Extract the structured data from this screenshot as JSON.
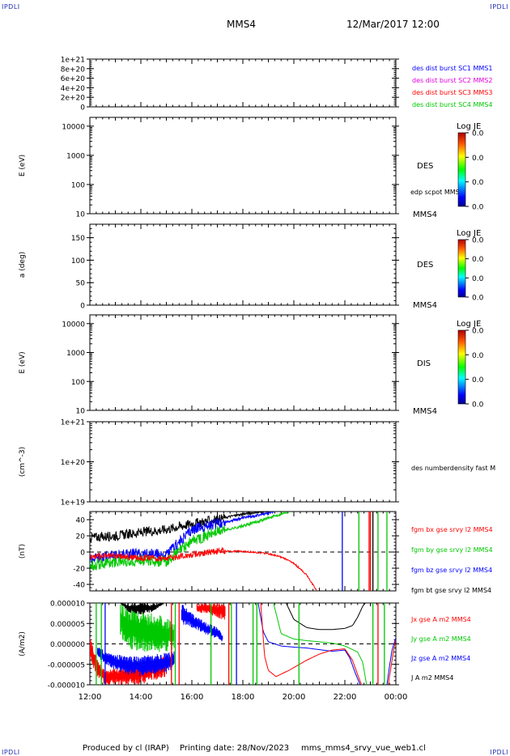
{
  "header": {
    "corner_label": "IPDLI",
    "title": "MMS4",
    "datetime": "12/Mar/2017 12:00"
  },
  "footer": {
    "produced_by": "Produced by cl (IRAP)",
    "printing_date": "Printing date: 28/Nov/2023",
    "filename": "mms_mms4_srvy_vue_web1.cl"
  },
  "colors": {
    "black": "#000000",
    "blue": "#0000ff",
    "red": "#ff0000",
    "green": "#00c800",
    "magenta": "#e000e0"
  },
  "chart_data": [
    {
      "type": "line",
      "id": "dist",
      "ylim": [
        0,
        1e+21
      ],
      "yticks": [
        0,
        2e+20,
        4e+20,
        6e+20,
        8e+20,
        1e+21
      ],
      "ytick_labels": [
        "0",
        "2e+20",
        "4e+20",
        "6e+20",
        "8e+20",
        "1e+21"
      ],
      "ylabel": "",
      "legend": [
        {
          "name": "des dist burst SC1 MMS1",
          "color": "#0000ff"
        },
        {
          "name": "des dist burst SC2 MMS2",
          "color": "#e000e0"
        },
        {
          "name": "des dist burst SC3 MMS3",
          "color": "#ff0000"
        },
        {
          "name": "des dist burst SC4 MMS4",
          "color": "#00c800"
        }
      ],
      "zero_line": true
    },
    {
      "type": "heatmap",
      "id": "des_energy",
      "scale": "log",
      "ylim": [
        10,
        20000
      ],
      "yticks": [
        10,
        100,
        1000,
        10000
      ],
      "ytick_labels": [
        "10",
        "100",
        "1000",
        "10000"
      ],
      "ylabel": "E (eV)",
      "label": "DES",
      "sub_label": "edp scpot MMS4",
      "bottom_label": "MMS4",
      "colorbar": {
        "title": "Log JE",
        "ticks": [
          "0.0",
          "0.0",
          "0.0",
          "0.0"
        ]
      }
    },
    {
      "type": "heatmap",
      "id": "des_pitch",
      "ylim": [
        0,
        180
      ],
      "yticks": [
        0,
        50,
        100,
        150
      ],
      "ytick_labels": [
        "0",
        "50",
        "100",
        "150"
      ],
      "ylabel": "a (deg)",
      "label": "DES",
      "bottom_label": "MMS4",
      "colorbar": {
        "title": "Log JE",
        "ticks": [
          "0.0",
          "0.0",
          "0.0",
          "0.0"
        ]
      }
    },
    {
      "type": "heatmap",
      "id": "dis_energy",
      "scale": "log",
      "ylim": [
        10,
        20000
      ],
      "yticks": [
        10,
        100,
        1000,
        10000
      ],
      "ytick_labels": [
        "10",
        "100",
        "1000",
        "10000"
      ],
      "ylabel": "E (eV)",
      "label": "DIS",
      "bottom_label": "MMS4",
      "colorbar": {
        "title": "Log JE",
        "ticks": [
          "0.0",
          "0.0",
          "0.0",
          "0.0"
        ]
      }
    },
    {
      "type": "line",
      "id": "density",
      "scale": "log",
      "ylim": [
        1e+19,
        1e+21
      ],
      "yticks": [
        1e+19,
        1e+20,
        1e+21
      ],
      "ytick_labels": [
        "1e+19",
        "1e+20",
        "1e+21"
      ],
      "ylabel": "(cm^-3)",
      "legend": [
        {
          "name": "des numberdensity fast M",
          "color": "#000000"
        }
      ]
    },
    {
      "type": "line",
      "id": "fgm",
      "ylim": [
        -48,
        50
      ],
      "yticks": [
        -40,
        -20,
        0,
        20,
        40
      ],
      "ytick_labels": [
        "-40",
        "-20",
        "0",
        "20",
        "40"
      ],
      "ylabel": "(nT)",
      "zero_line": true,
      "legend": [
        {
          "name": "fgm bx gse srvy l2 MMS4",
          "color": "#ff0000"
        },
        {
          "name": "fgm by gse srvy l2 MMS4",
          "color": "#00c800"
        },
        {
          "name": "fgm bz gse srvy l2 MMS4",
          "color": "#0000ff"
        },
        {
          "name": "fgm bt gse srvy l2 MMS4",
          "color": "#000000"
        }
      ],
      "series": [
        {
          "name": "fgm bt gse srvy l2 MMS4",
          "color": "#000000",
          "noise": 6,
          "x": [
            12.0,
            13.0,
            14.0,
            15.0,
            16.0,
            17.0,
            17.5,
            18.0,
            18.5,
            19.0
          ],
          "y": [
            18,
            20,
            24,
            28,
            35,
            40,
            44,
            47,
            49,
            50
          ]
        },
        {
          "name": "fgm bz gse srvy l2 MMS4",
          "color": "#0000ff",
          "noise": 7,
          "x": [
            12.0,
            13.0,
            14.0,
            15.0,
            16.0,
            17.0,
            18.0,
            18.5,
            19.0,
            19.2
          ],
          "y": [
            -8,
            -4,
            -2,
            -4,
            28,
            35,
            42,
            45,
            48,
            50
          ]
        },
        {
          "name": "fgm by gse srvy l2 MMS4",
          "color": "#00c800",
          "noise": 7,
          "x": [
            12.0,
            13.0,
            14.0,
            15.0,
            16.0,
            17.0,
            18.0,
            19.0,
            19.8
          ],
          "y": [
            -16,
            -12,
            -10,
            -12,
            14,
            25,
            32,
            42,
            50
          ]
        },
        {
          "name": "fgm bx gse srvy l2 MMS4",
          "color": "#ff0000",
          "noise": 4,
          "x": [
            12.0,
            13.0,
            14.0,
            15.0,
            16.0,
            17.0,
            18.0,
            19.0,
            19.5,
            20.0,
            20.5,
            20.9
          ],
          "y": [
            -6,
            -5,
            -7,
            -8,
            -3,
            1,
            1,
            -2,
            -6,
            -14,
            -28,
            -48
          ]
        }
      ],
      "vlines": [
        {
          "x": 21.9,
          "color": "#0000ff"
        },
        {
          "x": 22.55,
          "color": "#00c800"
        },
        {
          "x": 22.95,
          "color": "#ff0000"
        },
        {
          "x": 23.0,
          "color": "#ff0000"
        },
        {
          "x": 23.1,
          "color": "#000000"
        },
        {
          "x": 23.3,
          "color": "#00c800"
        },
        {
          "x": 23.65,
          "color": "#00c800"
        }
      ]
    },
    {
      "type": "line",
      "id": "current",
      "ylim": [
        -1e-05,
        1e-05
      ],
      "yticks": [
        -1e-05,
        -5e-06,
        0,
        5e-06,
        1e-05
      ],
      "ytick_labels": [
        "-0.000010",
        "-0.000005",
        "0.000000",
        "0.000005",
        "0.000010"
      ],
      "ylabel": "(A/m2)",
      "zero_line": true,
      "legend": [
        {
          "name": "Jx gse A m2 MMS4",
          "color": "#ff0000"
        },
        {
          "name": "Jy gse A m2 MMS4",
          "color": "#00c800"
        },
        {
          "name": "Jz gse A m2 MMS4",
          "color": "#0000ff"
        },
        {
          "name": "J A m2 MMS4",
          "color": "#000000"
        }
      ],
      "series": [
        {
          "name": "J A m2 MMS4",
          "color": "#000000",
          "noise": 0,
          "x": [
            19.7,
            20.0,
            20.5,
            21.0,
            21.5,
            22.0,
            22.3,
            22.5,
            22.7,
            22.8
          ],
          "y": [
            1e-05,
            6e-06,
            4e-06,
            3.5e-06,
            3.5e-06,
            3.8e-06,
            4.5e-06,
            6.5e-06,
            9.2e-06,
            1e-05
          ]
        },
        {
          "name": "Jy gse A m2 MMS4",
          "color": "#00c800",
          "noise": 0,
          "x": [
            19.2,
            19.5,
            20.0,
            20.5,
            21.0,
            21.5,
            22.0,
            22.5,
            22.7,
            22.85
          ],
          "y": [
            1e-05,
            2.5e-06,
            1.2e-06,
            8e-07,
            5e-07,
            2e-07,
            -5e-07,
            -2e-06,
            -4.5e-06,
            -1e-05
          ]
        },
        {
          "name": "Jz gse A m2 MMS4",
          "color": "#0000ff",
          "noise": 0,
          "x": [
            18.6,
            18.8,
            19.0,
            19.5,
            20.0,
            20.5,
            21.0,
            21.5,
            22.0,
            22.2,
            22.4,
            22.6
          ],
          "y": [
            1e-05,
            3e-06,
            5e-07,
            -5e-07,
            -8e-07,
            -1e-06,
            -1.4e-06,
            -1.8e-06,
            -1.5e-06,
            -3.5e-06,
            -7e-06,
            -1e-05
          ]
        },
        {
          "name": "Jx gse A m2 MMS4",
          "color": "#ff0000",
          "noise": 0,
          "x": [
            18.7,
            18.85,
            19.0,
            19.3,
            19.8,
            20.5,
            21.0,
            21.5,
            22.0,
            22.3,
            22.5,
            22.65
          ],
          "y": [
            1e-05,
            -3e-06,
            -6.5e-06,
            -8e-06,
            -6.5e-06,
            -4e-06,
            -2.5e-06,
            -1.5e-06,
            -1.2e-06,
            -4e-06,
            -7.5e-06,
            -1e-05
          ]
        },
        {
          "name": "Jx gse A m2 MMS4",
          "color": "#ff0000",
          "noise": 0,
          "x": [
            23.7,
            23.8,
            23.9,
            24.0
          ],
          "y": [
            -1e-05,
            -6e-06,
            -2e-06,
            1.2e-06
          ]
        },
        {
          "name": "Jz gse A m2 MMS4",
          "color": "#0000ff",
          "noise": 0,
          "x": [
            23.65,
            23.75,
            23.85,
            24.0
          ],
          "y": [
            -1e-05,
            -5.5e-06,
            -1.5e-06,
            1.5e-06
          ]
        }
      ],
      "bands": [
        {
          "color": "#ff0000",
          "x": [
            12.0,
            12.3,
            12.6,
            13.0,
            13.5,
            14.0,
            14.5,
            15.0
          ],
          "lo": [
            -4e-06,
            -8e-06,
            -1e-05,
            -1e-05,
            -1e-05,
            -1e-05,
            -9e-06,
            -8e-06
          ],
          "hi": [
            2.5e-06,
            -4e-06,
            -6.5e-06,
            -6e-06,
            -5e-06,
            -4.5e-06,
            -3.5e-06,
            -3e-06
          ]
        },
        {
          "color": "#0000ff",
          "x": [
            12.3,
            12.6,
            13.0,
            13.5,
            14.0,
            14.5,
            15.0,
            15.3
          ],
          "lo": [
            -3e-06,
            -5e-06,
            -6.5e-06,
            -7.5e-06,
            -8e-06,
            -7.5e-06,
            -7e-06,
            -6e-06
          ],
          "hi": [
            -5e-07,
            -1.8e-06,
            -2.5e-06,
            -3e-06,
            -3e-06,
            -2.5e-06,
            -2e-06,
            -1.5e-06
          ]
        },
        {
          "color": "#00c800",
          "x": [
            13.2,
            13.5,
            14.0,
            14.5,
            15.0,
            15.3
          ],
          "lo": [
            2e-06,
            -1.5e-06,
            -2e-06,
            -2e-06,
            -2e-06,
            -1.5e-06
          ],
          "hi": [
            1e-05,
            9.5e-06,
            8.5e-06,
            7.5e-06,
            6.5e-06,
            5.5e-06
          ]
        },
        {
          "color": "#000000",
          "x": [
            13.2,
            13.5,
            14.0,
            14.5,
            14.9
          ],
          "lo": [
            1e-05,
            7.8e-06,
            7.2e-06,
            7.8e-06,
            1e-05
          ],
          "hi": [
            1e-05,
            1e-05,
            1e-05,
            1e-05,
            1e-05
          ]
        },
        {
          "color": "#0000ff",
          "x": [
            15.6,
            16.0,
            16.5,
            17.0,
            17.2
          ],
          "lo": [
            4.8e-06,
            4e-06,
            2.5e-06,
            1.2e-06,
            5e-07
          ],
          "hi": [
            1e-05,
            7.5e-06,
            5.5e-06,
            4e-06,
            2.5e-06
          ]
        },
        {
          "color": "#ff0000",
          "x": [
            16.2,
            16.5,
            17.0,
            17.3
          ],
          "lo": [
            7.5e-06,
            7.5e-06,
            6.5e-06,
            5.5e-06
          ],
          "hi": [
            1e-05,
            1e-05,
            1e-05,
            1e-05
          ]
        }
      ],
      "vlines": [
        {
          "x": 12.25,
          "color": "#00c800"
        },
        {
          "x": 12.45,
          "color": "#00c800"
        },
        {
          "x": 12.6,
          "color": "#0000ff"
        },
        {
          "x": 15.2,
          "color": "#ff0000"
        },
        {
          "x": 15.35,
          "color": "#00c800"
        },
        {
          "x": 15.5,
          "color": "#ff0000"
        },
        {
          "x": 16.75,
          "color": "#00c800"
        },
        {
          "x": 17.45,
          "color": "#ff0000"
        },
        {
          "x": 17.55,
          "color": "#00c800"
        },
        {
          "x": 17.75,
          "color": "#0000ff"
        },
        {
          "x": 18.4,
          "color": "#00c800"
        },
        {
          "x": 18.55,
          "color": "#00c800"
        },
        {
          "x": 20.2,
          "color": "#00c800"
        },
        {
          "x": 23.1,
          "color": "#00c800"
        },
        {
          "x": 23.3,
          "color": "#ff0000"
        },
        {
          "x": 23.55,
          "color": "#00c800"
        }
      ]
    }
  ],
  "xaxis": {
    "range": [
      12,
      24
    ],
    "ticks": [
      12,
      14,
      16,
      18,
      20,
      22,
      24
    ],
    "tick_labels": [
      "12:00",
      "14:00",
      "16:00",
      "18:00",
      "20:00",
      "22:00",
      "00:00"
    ]
  }
}
